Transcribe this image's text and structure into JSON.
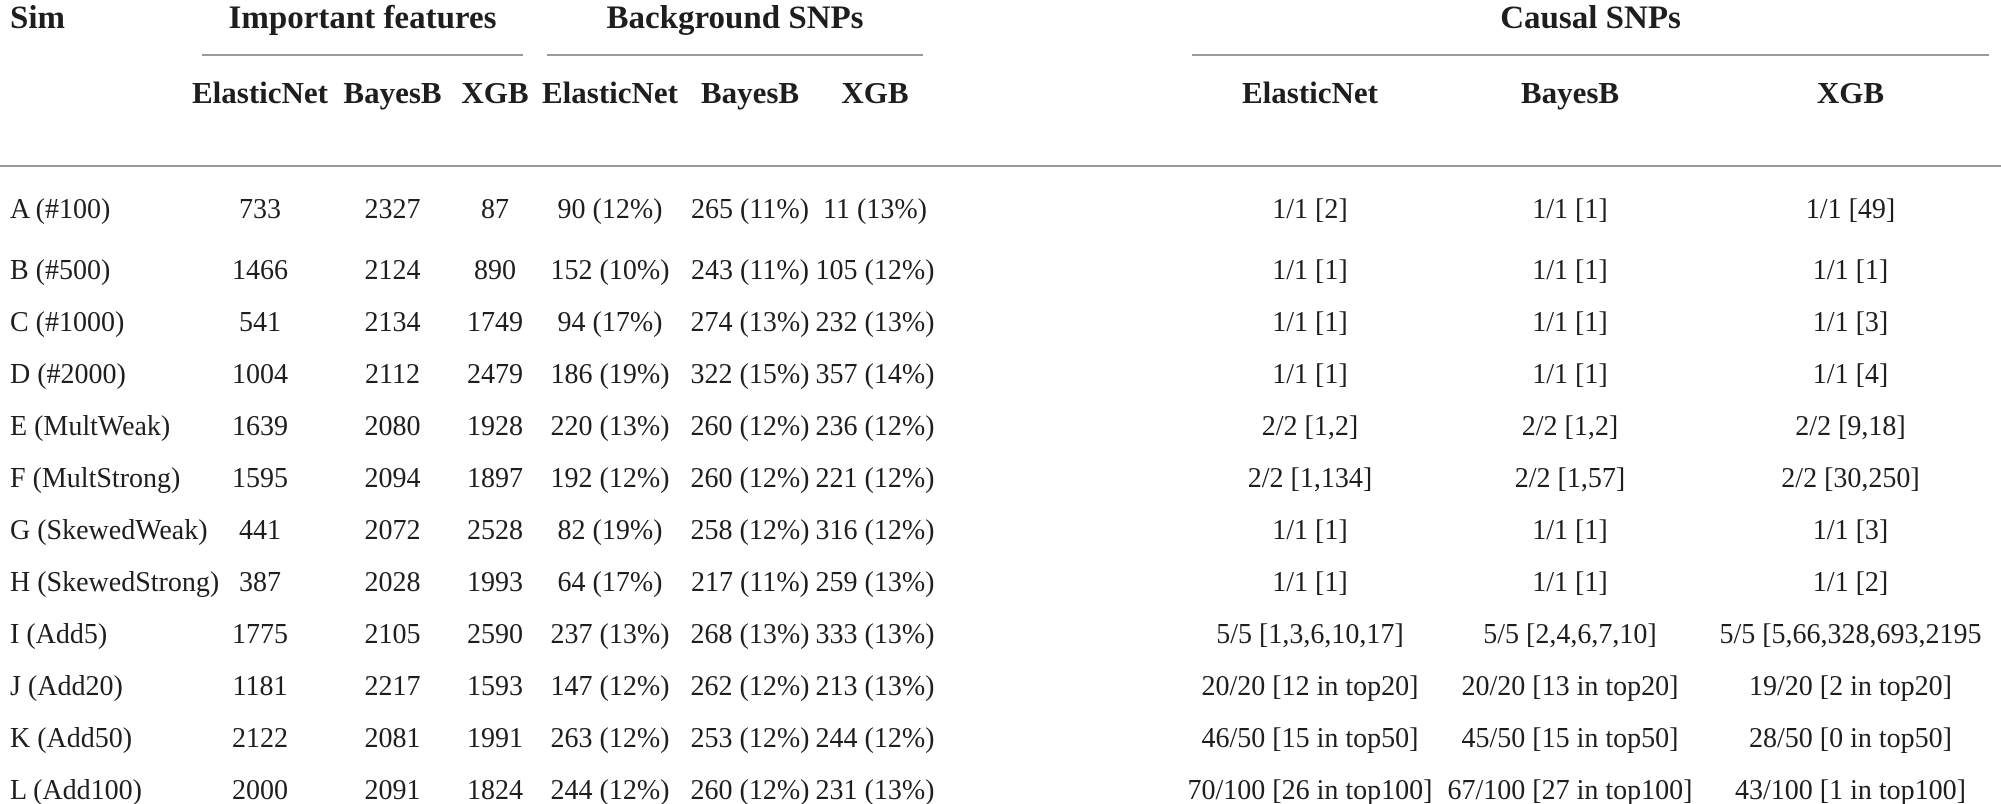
{
  "table": {
    "sim_header": "Sim",
    "groups": [
      {
        "label": "Important features",
        "columns": [
          "ElasticNet",
          "BayesB",
          "XGB"
        ]
      },
      {
        "label": "Background SNPs",
        "columns": [
          "ElasticNet",
          "BayesB",
          "XGB"
        ]
      },
      {
        "label": "Causal SNPs",
        "columns": [
          "ElasticNet",
          "BayesB",
          "XGB"
        ]
      }
    ],
    "rows": [
      {
        "sim": "A (#100)",
        "important": [
          "733",
          "2327",
          "87"
        ],
        "background": [
          "90 (12%)",
          "265 (11%)",
          "11 (13%)"
        ],
        "causal": [
          "1/1 [2]",
          "1/1 [1]",
          "1/1 [49]"
        ]
      },
      {
        "sim": "B (#500)",
        "important": [
          "1466",
          "2124",
          "890"
        ],
        "background": [
          "152 (10%)",
          "243 (11%)",
          "105 (12%)"
        ],
        "causal": [
          "1/1 [1]",
          "1/1 [1]",
          "1/1 [1]"
        ]
      },
      {
        "sim": "C (#1000)",
        "important": [
          "541",
          "2134",
          "1749"
        ],
        "background": [
          "94 (17%)",
          "274 (13%)",
          "232 (13%)"
        ],
        "causal": [
          "1/1 [1]",
          "1/1 [1]",
          "1/1 [3]"
        ]
      },
      {
        "sim": "D (#2000)",
        "important": [
          "1004",
          "2112",
          "2479"
        ],
        "background": [
          "186 (19%)",
          "322 (15%)",
          "357 (14%)"
        ],
        "causal": [
          "1/1 [1]",
          "1/1 [1]",
          "1/1 [4]"
        ]
      },
      {
        "sim": "E (MultWeak)",
        "important": [
          "1639",
          "2080",
          "1928"
        ],
        "background": [
          "220 (13%)",
          "260 (12%)",
          "236 (12%)"
        ],
        "causal": [
          "2/2 [1,2]",
          "2/2 [1,2]",
          "2/2 [9,18]"
        ]
      },
      {
        "sim": "F (MultStrong)",
        "important": [
          "1595",
          "2094",
          "1897"
        ],
        "background": [
          "192 (12%)",
          "260 (12%)",
          "221 (12%)"
        ],
        "causal": [
          "2/2 [1,134]",
          "2/2 [1,57]",
          "2/2 [30,250]"
        ]
      },
      {
        "sim": "G (SkewedWeak)",
        "important": [
          "441",
          "2072",
          "2528"
        ],
        "background": [
          "82 (19%)",
          "258 (12%)",
          "316 (12%)"
        ],
        "causal": [
          "1/1 [1]",
          "1/1 [1]",
          "1/1 [3]"
        ]
      },
      {
        "sim": "H (SkewedStrong)",
        "important": [
          "387",
          "2028",
          "1993"
        ],
        "background": [
          "64 (17%)",
          "217 (11%)",
          "259 (13%)"
        ],
        "causal": [
          "1/1 [1]",
          "1/1 [1]",
          "1/1 [2]"
        ]
      },
      {
        "sim": "I (Add5)",
        "important": [
          "1775",
          "2105",
          "2590"
        ],
        "background": [
          "237 (13%)",
          "268 (13%)",
          "333 (13%)"
        ],
        "causal": [
          "5/5 [1,3,6,10,17]",
          "5/5 [2,4,6,7,10]",
          "5/5 [5,66,328,693,2195"
        ]
      },
      {
        "sim": "J (Add20)",
        "important": [
          "1181",
          "2217",
          "1593"
        ],
        "background": [
          "147 (12%)",
          "262 (12%)",
          "213 (13%)"
        ],
        "causal": [
          "20/20 [12 in top20]",
          "20/20 [13 in top20]",
          "19/20 [2 in top20]"
        ]
      },
      {
        "sim": "K (Add50)",
        "important": [
          "2122",
          "2081",
          "1991"
        ],
        "background": [
          "263 (12%)",
          "253 (12%)",
          "244 (12%)"
        ],
        "causal": [
          "46/50 [15 in top50]",
          "45/50 [15 in top50]",
          "28/50 [0 in top50]"
        ]
      },
      {
        "sim": "L (Add100)",
        "important": [
          "2000",
          "2091",
          "1824"
        ],
        "background": [
          "244 (12%)",
          "260 (12%)",
          "231 (13%)"
        ],
        "causal": [
          "70/100 [26 in top100]",
          "67/100 [27 in top100]",
          "43/100 [1 in top100]"
        ]
      }
    ]
  }
}
